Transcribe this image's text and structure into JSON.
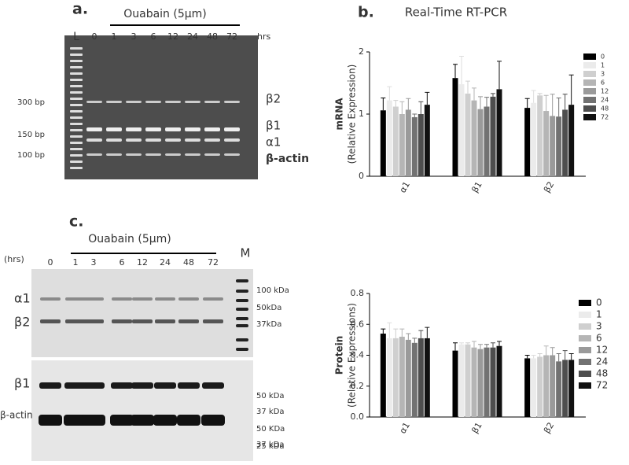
{
  "chart_data": [
    {
      "type": "bar",
      "panel": "b.",
      "title": "Real-Time RT-PCR",
      "y_label": [
        "mRNA",
        "(Relative  Expression)"
      ],
      "categories": [
        "α1",
        "β1",
        "β2"
      ],
      "ylim": [
        0,
        2
      ],
      "yticks": [
        0,
        1,
        2
      ],
      "series": [
        {
          "name": "0",
          "color": "#000000",
          "values": [
            1.06,
            1.58,
            1.1
          ],
          "errors": [
            0.2,
            0.22,
            0.15
          ]
        },
        {
          "name": "1",
          "color": "#ebebeb",
          "values": [
            1.22,
            1.48,
            1.18
          ],
          "errors": [
            0.22,
            0.45,
            0.2
          ]
        },
        {
          "name": "3",
          "color": "#cfcfcf",
          "values": [
            1.12,
            1.33,
            1.3
          ],
          "errors": [
            0.1,
            0.2,
            0.03
          ]
        },
        {
          "name": "6",
          "color": "#b5b5b5",
          "values": [
            1.0,
            1.22,
            1.05
          ],
          "errors": [
            0.2,
            0.2,
            0.25
          ]
        },
        {
          "name": "12",
          "color": "#9a9a9a",
          "values": [
            1.07,
            1.08,
            0.97
          ],
          "errors": [
            0.18,
            0.2,
            0.35
          ]
        },
        {
          "name": "24",
          "color": "#727272",
          "values": [
            0.95,
            1.12,
            0.96
          ],
          "errors": [
            0.05,
            0.15,
            0.3
          ]
        },
        {
          "name": "48",
          "color": "#4e4e4e",
          "values": [
            1.0,
            1.28,
            1.07
          ],
          "errors": [
            0.2,
            0.05,
            0.25
          ]
        },
        {
          "name": "72",
          "color": "#111111",
          "values": [
            1.15,
            1.4,
            1.15
          ],
          "errors": [
            0.2,
            0.45,
            0.48
          ]
        }
      ]
    },
    {
      "type": "bar",
      "y_label": [
        "Protein",
        "(Relative Expressions)"
      ],
      "categories": [
        "α1",
        "β1",
        "β2"
      ],
      "ylim": [
        0,
        0.8
      ],
      "yticks": [
        {
          "value": 0,
          "label": "0.0"
        },
        0.2,
        0.4,
        0.6,
        0.8
      ],
      "series": [
        {
          "name": "0",
          "color": "#000000",
          "values": [
            0.54,
            0.43,
            0.38
          ],
          "errors": [
            0.03,
            0.05,
            0.02
          ]
        },
        {
          "name": "1",
          "color": "#ebebeb",
          "values": [
            0.51,
            0.47,
            0.38
          ],
          "errors": [
            0.1,
            0.01,
            0.02
          ]
        },
        {
          "name": "3",
          "color": "#cfcfcf",
          "values": [
            0.51,
            0.47,
            0.39
          ],
          "errors": [
            0.06,
            0.01,
            0.02
          ]
        },
        {
          "name": "6",
          "color": "#b5b5b5",
          "values": [
            0.52,
            0.45,
            0.4
          ],
          "errors": [
            0.05,
            0.04,
            0.06
          ]
        },
        {
          "name": "12",
          "color": "#9a9a9a",
          "values": [
            0.5,
            0.44,
            0.4
          ],
          "errors": [
            0.04,
            0.03,
            0.05
          ]
        },
        {
          "name": "24",
          "color": "#727272",
          "values": [
            0.48,
            0.45,
            0.36
          ],
          "errors": [
            0.03,
            0.02,
            0.05
          ]
        },
        {
          "name": "48",
          "color": "#4e4e4e",
          "values": [
            0.51,
            0.45,
            0.37
          ],
          "errors": [
            0.05,
            0.03,
            0.06
          ]
        },
        {
          "name": "72",
          "color": "#111111",
          "values": [
            0.51,
            0.46,
            0.37
          ],
          "errors": [
            0.07,
            0.03,
            0.04
          ]
        }
      ]
    }
  ],
  "gels": {
    "a": {
      "panel": "a.",
      "treatment": "Ouabain (5μm)",
      "ladder": "L",
      "lanes": [
        "0",
        "1",
        "3",
        "6",
        "12",
        "24",
        "48",
        "72"
      ],
      "unit": "hrs",
      "sizes": [
        "300 bp",
        "150 bp",
        "100 bp"
      ],
      "bands": [
        "β2",
        "β1",
        "α1",
        "β-actin"
      ]
    },
    "c": {
      "panel": "c.",
      "treatment": "Ouabain (5μm)",
      "unit": "(hrs)",
      "lanes": [
        "0",
        "1",
        "3",
        "6",
        "12",
        "24",
        "48",
        "72"
      ],
      "marker": "M",
      "bands": [
        "α1",
        "β2",
        "β1",
        "β-actin"
      ],
      "sizes": [
        "100 kDa",
        "50kDa",
        "37kDa",
        "50 kDa",
        "37 kDa",
        "50 KDa",
        "37 kDa",
        "25 kDa"
      ]
    }
  }
}
